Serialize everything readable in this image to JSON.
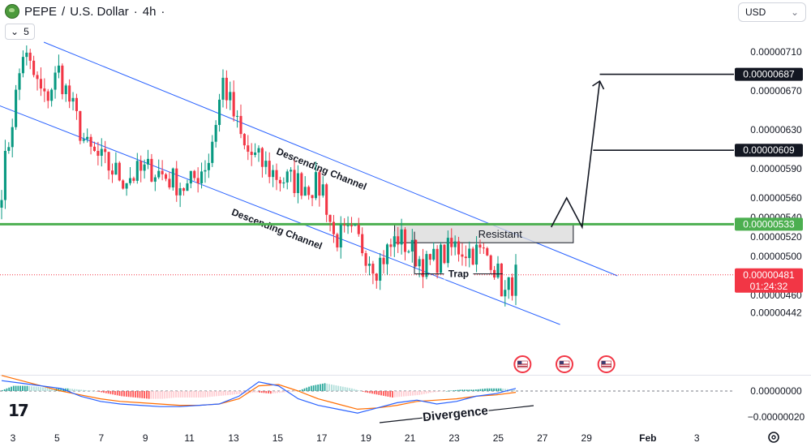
{
  "header": {
    "symbol": "PEPE",
    "sep1": "/",
    "quote": "U.S. Dollar",
    "sep2": "·",
    "interval": "4h",
    "dot": "·",
    "symbol_icon": "frog-logo-icon"
  },
  "indicator_toggle": {
    "icon": "chevron-down-icon",
    "count": "5"
  },
  "currency": {
    "label": "USD",
    "icon": "chevron-down-icon"
  },
  "logo": {
    "text": "17",
    "icon": "tradingview-logo-icon"
  },
  "settings_icon": "gear-icon",
  "colors": {
    "up": "#089981",
    "down": "#f23645",
    "channel": "#2962ff",
    "support": "#4caf50",
    "zone_fill": "#d9d9d9",
    "price_dot": "#f23645",
    "macd_line": "#2962ff",
    "signal_line": "#ff6d00"
  },
  "chart_data": [
    {
      "type": "candlestick",
      "title": "PEPE / U.S. Dollar · 4h",
      "ylim": [
        4.4e-06,
        7.3e-06
      ],
      "y_ticks": [
        "0.00000710",
        "0.00000670",
        "0.00000630",
        "0.00000590",
        "0.00000560",
        "0.00000540",
        "0.00000520",
        "0.00000500",
        "0.00000460",
        "0.00000442"
      ],
      "x_ticks": [
        "3",
        "5",
        "7",
        "9",
        "11",
        "13",
        "15",
        "17",
        "19",
        "21",
        "23",
        "25",
        "27",
        "29",
        "Feb",
        "3"
      ],
      "segments": [
        {
          "start": 5.5e-06,
          "end": 7.1e-06,
          "bars": 7
        },
        {
          "start": 7.1e-06,
          "end": 6.6e-06,
          "bars": 6
        },
        {
          "start": 6.6e-06,
          "end": 6.9e-06,
          "bars": 4
        },
        {
          "start": 6.9e-06,
          "end": 6.1e-06,
          "bars": 8
        },
        {
          "start": 6.1e-06,
          "end": 5.8e-06,
          "bars": 10
        },
        {
          "start": 5.8e-06,
          "end": 5.9e-06,
          "bars": 8
        },
        {
          "start": 5.9e-06,
          "end": 5.7e-06,
          "bars": 10
        },
        {
          "start": 5.7e-06,
          "end": 6e-06,
          "bars": 6
        },
        {
          "start": 6e-06,
          "end": 6.8e-06,
          "bars": 4
        },
        {
          "start": 6.8e-06,
          "end": 6.1e-06,
          "bars": 6
        },
        {
          "start": 6.1e-06,
          "end": 5.8e-06,
          "bars": 10
        },
        {
          "start": 5.8e-06,
          "end": 5.7e-06,
          "bars": 12
        },
        {
          "start": 5.7e-06,
          "end": 5.2e-06,
          "bars": 3
        },
        {
          "start": 5.2e-06,
          "end": 5.2e-06,
          "bars": 6
        },
        {
          "start": 5.2e-06,
          "end": 4.9e-06,
          "bars": 6
        },
        {
          "start": 4.9e-06,
          "end": 5.2e-06,
          "bars": 6
        },
        {
          "start": 5.2e-06,
          "end": 4.9e-06,
          "bars": 8
        },
        {
          "start": 4.9e-06,
          "end": 5.1e-06,
          "bars": 8
        },
        {
          "start": 5.1e-06,
          "end": 5e-06,
          "bars": 10
        },
        {
          "start": 5e-06,
          "end": 4.6e-06,
          "bars": 4
        },
        {
          "start": 4.6e-06,
          "end": 4.8e-06,
          "bars": 3
        }
      ],
      "price_labels": [
        {
          "value": "0.00000687",
          "price": 6.87e-06,
          "style": "dark"
        },
        {
          "value": "0.00000609",
          "price": 6.09e-06,
          "style": "dark"
        },
        {
          "value": "0.00000533",
          "price": 5.33e-06,
          "style": "green"
        },
        {
          "value": "0.00000481",
          "price": 4.81e-06,
          "style": "red",
          "countdown": "01:24:32"
        }
      ],
      "support_level": 5.33e-06,
      "zone": {
        "label": "Resistant",
        "top": 5.33e-06,
        "bottom": 5.14e-06,
        "from_day": 20.3,
        "to_day": 28.4
      },
      "channels": [
        {
          "label": "Descending Channel",
          "from": [
            4.4,
            7.2e-06
          ],
          "to": [
            30.4,
            4.8e-06
          ]
        },
        {
          "label": "Descending Channel",
          "from": [
            1.8,
            6.6e-06
          ],
          "to": [
            27.8,
            4.3e-06
          ]
        }
      ],
      "trap": {
        "label": "Trap",
        "level": 4.82e-06,
        "from_day": 21.2,
        "to_day": 25.2
      },
      "projection": [
        [
          27.4,
          5.3e-06
        ],
        [
          28.1,
          5.6e-06
        ],
        [
          28.8,
          5.3e-06
        ],
        [
          29.6,
          6.8e-06
        ]
      ],
      "target_lines": [
        {
          "price": 6.87e-06,
          "from_day": 29.6
        },
        {
          "price": 6.09e-06,
          "from_day": 29.3
        }
      ],
      "event_markers": [
        26.1,
        28.0,
        29.9
      ],
      "event_icon": "us-flag-icon"
    },
    {
      "type": "macd",
      "y_ticks": [
        "0.00000000",
        "−0.00000020"
      ],
      "ylim": [
        -2.4e-07,
        1.3e-07
      ],
      "histogram": [
        4e-08,
        4e-08,
        3e-08,
        2e-08,
        2e-08,
        1e-08,
        0.0,
        -2e-08,
        -4e-08,
        -5e-08,
        -6e-08,
        -6e-08,
        -5e-08,
        -5e-08,
        -5e-08,
        -4e-08,
        -3e-08,
        -2e-08,
        -1e-08,
        -2e-08,
        -1e-08,
        0.0,
        4e-08,
        6e-08,
        4e-08,
        2e-08,
        -1e-08,
        -3e-08,
        -5e-08,
        -4e-08,
        -3e-08,
        -1e-08,
        0.0,
        1e-08,
        1e-08,
        2e-08,
        2e-08,
        1e-08
      ],
      "macd": [
        8e-08,
        6e-08,
        4e-08,
        2e-08,
        -4e-08,
        -8e-08,
        -1e-07,
        -1.1e-07,
        -1.2e-07,
        -1.2e-07,
        -1.1e-07,
        -1e-07,
        -4e-08,
        7e-08,
        4e-08,
        -6e-08,
        -1.1e-07,
        -1.4e-07,
        -1.7e-07,
        -1.3e-07,
        -9e-08,
        -7e-08,
        -1e-07,
        -8e-08,
        -4e-08,
        -2e-08,
        2e-08
      ],
      "signal": [
        1.2e-07,
        8e-08,
        4e-08,
        0.0,
        -3e-08,
        -6e-08,
        -8e-08,
        -9e-08,
        -1e-07,
        -1.1e-07,
        -1.1e-07,
        -1e-07,
        -6e-08,
        4e-08,
        5e-08,
        0.0,
        -6e-08,
        -1e-07,
        -1.4e-07,
        -1.3e-07,
        -1.1e-07,
        -8e-08,
        -7e-08,
        -6e-08,
        -4e-08,
        -3e-08,
        -1e-08
      ],
      "divergence_label": "Divergence"
    }
  ]
}
